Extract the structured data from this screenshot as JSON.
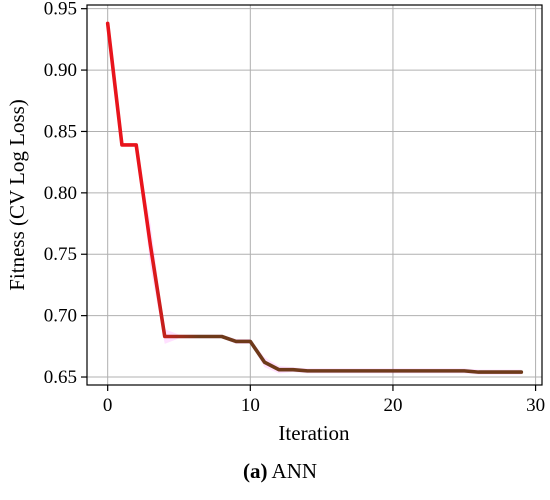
{
  "chart_data": {
    "type": "line",
    "title": "",
    "xlabel": "Iteration",
    "ylabel": "Fitness (CV Log Loss)",
    "xlim": [
      -1.45,
      30.45
    ],
    "ylim": [
      0.6435,
      0.953
    ],
    "x_ticks": [
      0,
      10,
      20,
      30
    ],
    "y_ticks": [
      0.65,
      0.7,
      0.75,
      0.8,
      0.85,
      0.9,
      0.95
    ],
    "x_tick_labels": [
      "0",
      "10",
      "20",
      "30"
    ],
    "y_tick_labels": [
      "0.65",
      "0.70",
      "0.75",
      "0.80",
      "0.85",
      "0.90",
      "0.95"
    ],
    "grid": true,
    "line_color_start": "#e8141c",
    "line_color_end": "#6e3a1a",
    "band_color": "#ff00ff",
    "series": [
      {
        "x": [
          0,
          1,
          2,
          3,
          4,
          5,
          6,
          7,
          8,
          9,
          10,
          11,
          12,
          13,
          14,
          15,
          16,
          17,
          18,
          19,
          20,
          21,
          22,
          23,
          24,
          25,
          26,
          27,
          28,
          29
        ],
        "values": [
          0.938,
          0.839,
          0.839,
          0.757,
          0.683,
          0.683,
          0.683,
          0.683,
          0.683,
          0.679,
          0.679,
          0.662,
          0.656,
          0.656,
          0.655,
          0.655,
          0.655,
          0.655,
          0.655,
          0.655,
          0.655,
          0.655,
          0.655,
          0.655,
          0.655,
          0.655,
          0.654,
          0.654,
          0.654,
          0.654
        ],
        "spread": [
          0.0,
          0.0,
          0.0,
          0.018,
          0.006,
          0.0015,
          0.0015,
          0.0015,
          0.0015,
          0.002,
          0.002,
          0.004,
          0.003,
          0.002,
          0.002,
          0.002,
          0.002,
          0.002,
          0.002,
          0.002,
          0.002,
          0.002,
          0.002,
          0.002,
          0.002,
          0.002,
          0.002,
          0.002,
          0.002,
          0.002
        ]
      }
    ]
  },
  "caption": {
    "bold": "(a)",
    "text": " ANN"
  }
}
